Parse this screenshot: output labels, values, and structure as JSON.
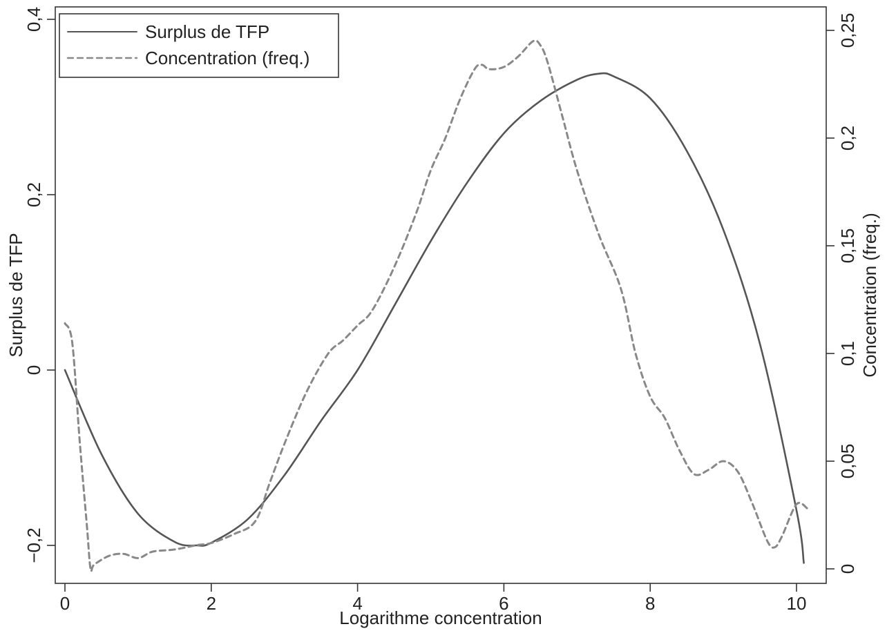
{
  "chart_data": {
    "type": "line",
    "xlabel": "Logarithme concentration",
    "ylabel_left": "Surplus de TFP",
    "ylabel_right": "Concentration (freq.)",
    "xlim": [
      0,
      10
    ],
    "ylim_left": [
      -0.2,
      0.4
    ],
    "ylim_right": [
      0,
      0.25
    ],
    "x_ticks": [
      0,
      2,
      4,
      6,
      8,
      10
    ],
    "x_tick_labels": [
      "0",
      "2",
      "4",
      "6",
      "8",
      "10"
    ],
    "y_left_ticks": [
      -0.2,
      0,
      0.2,
      0.4
    ],
    "y_left_tick_labels": [
      "−0,2",
      "0",
      "0,2",
      "0,4"
    ],
    "y_right_ticks": [
      0,
      0.05,
      0.1,
      0.15,
      0.2,
      0.25
    ],
    "y_right_tick_labels": [
      "0",
      "0,05",
      "0,1",
      "0,15",
      "0,2",
      "0,25"
    ],
    "grid": false,
    "legend_position": "top-left",
    "series": [
      {
        "name": "Surplus de TFP",
        "axis": "left",
        "style": "solid",
        "color": "#555555",
        "x": [
          0,
          0.5,
          1.0,
          1.5,
          1.8,
          2.0,
          2.5,
          3.0,
          3.5,
          4.0,
          4.5,
          5.0,
          5.5,
          6.0,
          6.5,
          7.0,
          7.3,
          7.5,
          8.0,
          8.5,
          9.0,
          9.5,
          10.0,
          10.1
        ],
        "y": [
          0.0,
          -0.096,
          -0.164,
          -0.196,
          -0.2,
          -0.197,
          -0.17,
          -0.12,
          -0.058,
          0.0,
          0.073,
          0.147,
          0.214,
          0.27,
          0.307,
          0.331,
          0.338,
          0.335,
          0.31,
          0.25,
          0.16,
          0.03,
          -0.16,
          -0.22
        ]
      },
      {
        "name": "Concentration (freq.)",
        "axis": "right",
        "style": "dashed",
        "color": "#888888",
        "x": [
          0.0,
          0.1,
          0.2,
          0.3,
          0.35,
          0.4,
          0.6,
          0.8,
          1.0,
          1.2,
          1.5,
          1.8,
          2.0,
          2.3,
          2.6,
          2.8,
          3.0,
          3.3,
          3.6,
          3.8,
          4.0,
          4.2,
          4.5,
          4.8,
          5.0,
          5.2,
          5.4,
          5.6,
          5.7,
          5.8,
          6.0,
          6.2,
          6.4,
          6.5,
          6.6,
          6.8,
          7.0,
          7.3,
          7.6,
          7.8,
          8.0,
          8.2,
          8.4,
          8.6,
          8.8,
          9.0,
          9.2,
          9.4,
          9.6,
          9.7,
          9.8,
          10.0,
          10.15
        ],
        "y": [
          0.114,
          0.105,
          0.06,
          0.02,
          0.0,
          0.002,
          0.006,
          0.007,
          0.005,
          0.008,
          0.009,
          0.011,
          0.012,
          0.016,
          0.022,
          0.04,
          0.058,
          0.082,
          0.1,
          0.106,
          0.113,
          0.12,
          0.14,
          0.165,
          0.185,
          0.2,
          0.218,
          0.232,
          0.234,
          0.232,
          0.233,
          0.238,
          0.245,
          0.243,
          0.235,
          0.21,
          0.185,
          0.155,
          0.13,
          0.1,
          0.08,
          0.07,
          0.055,
          0.044,
          0.046,
          0.05,
          0.045,
          0.03,
          0.013,
          0.01,
          0.015,
          0.03,
          0.028
        ]
      }
    ]
  }
}
